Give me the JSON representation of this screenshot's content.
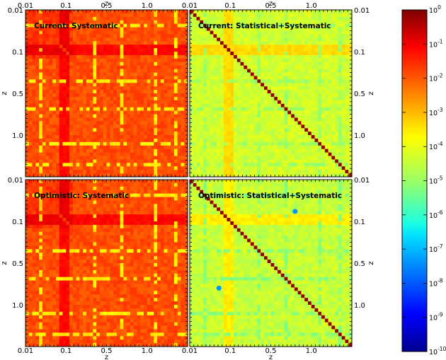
{
  "chart_data": {
    "type": "heatmap",
    "colorbar": {
      "scale": "log",
      "range": [
        1e-10,
        1
      ],
      "colormap": "jet",
      "tick_labels": [
        {
          "base": "10",
          "exp": "0"
        },
        {
          "base": "10",
          "exp": "-1"
        },
        {
          "base": "10",
          "exp": "-2"
        },
        {
          "base": "10",
          "exp": "-3"
        },
        {
          "base": "10",
          "exp": "-4"
        },
        {
          "base": "10",
          "exp": "-5"
        },
        {
          "base": "10",
          "exp": "-6"
        },
        {
          "base": "10",
          "exp": "-7"
        },
        {
          "base": "10",
          "exp": "-8"
        },
        {
          "base": "10",
          "exp": "-9"
        },
        {
          "base": "10",
          "exp": "-10"
        }
      ]
    },
    "axes": {
      "label": "z",
      "ticks": [
        "0.01",
        "0.1",
        "0.5",
        "1.0"
      ],
      "range": [
        0.01,
        1.5
      ]
    },
    "panels": [
      {
        "title": "Current: Systematic",
        "diagonal_log": -1.8,
        "background_log": -2.0,
        "hot_bands_log": -1.3,
        "cool_lines_log": -3.6
      },
      {
        "title": "Current: Statistical+Systematic",
        "diagonal_log": -0.2,
        "background_log": -4.2,
        "hot_bands_log": -3.4,
        "cool_lines_log": -4.7
      },
      {
        "title": "Optimistic: Systematic",
        "diagonal_log": -1.8,
        "background_log": -2.0,
        "hot_bands_log": -1.3,
        "cool_lines_log": -3.6
      },
      {
        "title": "Optimistic: Statistical+Systematic",
        "diagonal_log": -0.2,
        "background_log": -4.3,
        "hot_bands_log": -3.6,
        "cool_lines_log": -4.9
      }
    ]
  }
}
